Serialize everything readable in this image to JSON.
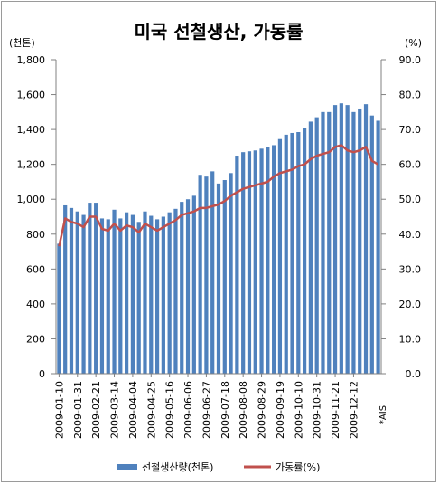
{
  "chart_data": {
    "type": "bar+line",
    "title": "미국 선철생산, 가동률",
    "left_axis": {
      "unit_label": "(천톤)",
      "ylim": [
        0,
        1800
      ],
      "ticks": [
        "0",
        "200",
        "400",
        "600",
        "800",
        "1,000",
        "1,200",
        "1,400",
        "1,600",
        "1,800"
      ]
    },
    "right_axis": {
      "unit_label": "(%)",
      "ylim": [
        0.0,
        90.0
      ],
      "ticks": [
        "0.0",
        "10.0",
        "20.0",
        "30.0",
        "40.0",
        "50.0",
        "60.0",
        "70.0",
        "80.0",
        "90.0"
      ]
    },
    "x_tick_labels": [
      "2009-01-10",
      "2009-01-31",
      "2009-02-21",
      "2009-03-14",
      "2009-04-04",
      "2009-04-25",
      "2009-05-16",
      "2009-06-06",
      "2009-06-27",
      "2009-07-18",
      "2009-08-08",
      "2009-08-29",
      "2009-09-19",
      "2009-10-10",
      "2009-10-31",
      "2009-11-21",
      "2009-12-12"
    ],
    "source_note": "*AISI",
    "series": [
      {
        "name": "선철생산량(천톤)",
        "kind": "bar",
        "axis": "left",
        "color": "#4f81bd",
        "values": [
          745,
          965,
          950,
          930,
          910,
          980,
          980,
          890,
          885,
          940,
          890,
          925,
          910,
          870,
          930,
          905,
          885,
          900,
          925,
          945,
          985,
          1000,
          1020,
          1140,
          1130,
          1160,
          1090,
          1110,
          1150,
          1250,
          1270,
          1275,
          1280,
          1290,
          1300,
          1310,
          1345,
          1370,
          1380,
          1385,
          1410,
          1445,
          1470,
          1500,
          1500,
          1540,
          1550,
          1540,
          1500,
          1520,
          1545,
          1480,
          1450
        ]
      },
      {
        "name": "가동률(%)",
        "kind": "line",
        "axis": "right",
        "color": "#c0504d",
        "values": [
          36.5,
          44.5,
          43.5,
          43.0,
          42.0,
          45.0,
          45.0,
          41.5,
          41.0,
          43.0,
          41.0,
          42.5,
          42.0,
          40.5,
          43.0,
          42.0,
          41.0,
          42.0,
          43.0,
          44.0,
          45.5,
          46.0,
          46.5,
          47.5,
          47.5,
          48.0,
          48.5,
          49.5,
          51.0,
          52.0,
          53.0,
          53.5,
          54.0,
          54.5,
          55.0,
          56.5,
          57.5,
          58.0,
          58.5,
          59.5,
          60.0,
          61.5,
          62.5,
          63.0,
          63.5,
          65.0,
          65.5,
          64.0,
          63.5,
          64.0,
          65.0,
          61.0,
          60.0
        ]
      }
    ],
    "legend": {
      "placement": "bottom"
    },
    "grid": false
  }
}
